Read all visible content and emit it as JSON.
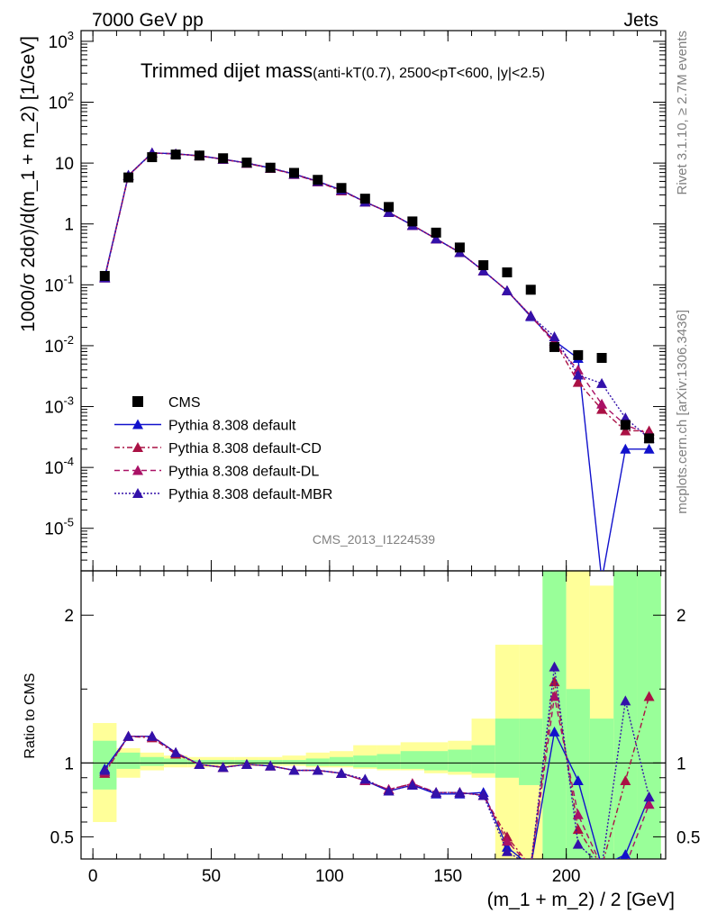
{
  "header": {
    "left": "7000 GeV pp",
    "right": "Jets"
  },
  "side_labels": {
    "top": "Rivet 3.1.10, ≥ 2.7M events",
    "bottom": "mcplots.cern.ch [arXiv:1306.3436]"
  },
  "watermark": "CMS_2013_I1224539",
  "chart_data": {
    "type": "line",
    "title": "Trimmed dijet mass",
    "subtitle": "(anti-kT(0.7), 2500<pT<600, |y|<2.5)",
    "xlabel": "(m_1 + m_2) / 2 [GeV]",
    "ylabel": "1000/σ 2dσ)/d(m_1 + m_2) [1/GeV]",
    "ratio_ylabel": "Ratio to CMS",
    "xlim": [
      -5,
      242
    ],
    "ylim": [
      2e-06,
      1500
    ],
    "yscale": "log",
    "ratio_ylim": [
      0.35,
      2.3
    ],
    "x_ticks": [
      "0",
      "50",
      "100",
      "150",
      "200"
    ],
    "y_ticks": [
      "10^3",
      "10^2",
      "10",
      "1",
      "10^-1",
      "10^-2",
      "10^-3",
      "10^-4",
      "10^-5"
    ],
    "ratio_ticks": [
      "0.5",
      "1",
      "2"
    ],
    "legend_placement": "bottom-left",
    "x": [
      5,
      15,
      25,
      35,
      45,
      55,
      65,
      75,
      85,
      95,
      105,
      115,
      125,
      135,
      145,
      155,
      165,
      175,
      185,
      195,
      205,
      215,
      225,
      235
    ],
    "data": {
      "name": "CMS",
      "values": [
        0.14,
        5.8,
        12.5,
        13.8,
        13.3,
        12.0,
        10.2,
        8.4,
        6.9,
        5.3,
        3.9,
        2.6,
        1.9,
        1.1,
        0.72,
        0.41,
        0.21,
        0.16,
        0.083,
        0.0095,
        0.007,
        0.0063,
        0.0005,
        0.0003
      ]
    },
    "bands": {
      "inner_edges": [
        0,
        10,
        20,
        30,
        40,
        50,
        60,
        70,
        80,
        90,
        100,
        110,
        120,
        130,
        140,
        150,
        160,
        170,
        180,
        190,
        200,
        210,
        220,
        230,
        240
      ],
      "inner_lo": [
        0.82,
        0.96,
        0.98,
        0.99,
        0.99,
        0.99,
        0.99,
        0.99,
        0.99,
        0.98,
        0.98,
        0.97,
        0.96,
        0.96,
        0.95,
        0.94,
        0.93,
        0.9,
        0.85,
        0.3,
        0.3,
        0.3,
        0.3,
        0.3
      ],
      "inner_hi": [
        1.15,
        1.07,
        1.04,
        1.03,
        1.02,
        1.02,
        1.02,
        1.02,
        1.02,
        1.03,
        1.04,
        1.05,
        1.06,
        1.08,
        1.08,
        1.09,
        1.12,
        1.3,
        1.3,
        2.3,
        1.5,
        1.3,
        2.3,
        2.3
      ],
      "outer_lo": [
        0.6,
        0.9,
        0.95,
        0.97,
        0.97,
        0.98,
        0.98,
        0.98,
        0.98,
        0.97,
        0.97,
        0.96,
        0.95,
        0.95,
        0.93,
        0.92,
        0.9,
        0.3,
        0.3,
        0.3,
        0.3,
        0.3,
        0.3,
        0.3
      ],
      "outer_hi": [
        1.27,
        1.1,
        1.07,
        1.05,
        1.04,
        1.04,
        1.04,
        1.04,
        1.05,
        1.07,
        1.08,
        1.12,
        1.12,
        1.14,
        1.14,
        1.15,
        1.3,
        1.8,
        1.8,
        2.3,
        2.3,
        2.2,
        2.3,
        2.3
      ]
    },
    "series": [
      {
        "name": "Pythia 8.308 default",
        "color": "#1111cc",
        "dash": "",
        "main": [
          0.135,
          6.3,
          14.7,
          14.2,
          13.2,
          11.6,
          10.0,
          8.3,
          6.6,
          5.0,
          3.6,
          2.3,
          1.55,
          0.95,
          0.57,
          0.34,
          0.17,
          0.08,
          0.03,
          0.012,
          0.0062,
          0.0,
          0.0002,
          0.0002
        ],
        "ratio": [
          0.96,
          1.18,
          1.18,
          1.07,
          0.99,
          0.97,
          0.99,
          0.98,
          0.95,
          0.95,
          0.93,
          0.88,
          0.81,
          0.85,
          0.79,
          0.79,
          0.8,
          0.43,
          0.3,
          1.21,
          0.88,
          0.3,
          0.38,
          0.77
        ]
      },
      {
        "name": "Pythia 8.308 default-CD",
        "color": "#aa1144",
        "dash": "6,3,2,3",
        "main": [
          0.13,
          6.2,
          14.6,
          14.1,
          13.1,
          11.5,
          9.9,
          8.2,
          6.5,
          4.9,
          3.5,
          2.3,
          1.55,
          0.95,
          0.57,
          0.34,
          0.17,
          0.08,
          0.031,
          0.012,
          0.0025,
          0.0009,
          0.0004,
          0.0004
        ],
        "ratio": [
          0.93,
          1.18,
          1.17,
          1.06,
          0.99,
          0.97,
          0.99,
          0.98,
          0.95,
          0.95,
          0.93,
          0.88,
          0.82,
          0.86,
          0.8,
          0.8,
          0.78,
          0.5,
          0.3,
          1.55,
          0.55,
          0.3,
          0.88,
          1.45
        ]
      },
      {
        "name": "Pythia 8.308 default-DL",
        "color": "#aa1166",
        "dash": "6,4",
        "main": [
          0.13,
          6.2,
          14.7,
          14.2,
          13.2,
          11.6,
          10.0,
          8.3,
          6.6,
          5.0,
          3.6,
          2.3,
          1.55,
          0.95,
          0.57,
          0.34,
          0.17,
          0.08,
          0.031,
          0.011,
          0.004,
          0.0011,
          0.0005,
          0.00035
        ],
        "ratio": [
          0.94,
          1.18,
          1.18,
          1.07,
          0.99,
          0.97,
          0.99,
          0.98,
          0.95,
          0.95,
          0.93,
          0.88,
          0.82,
          0.86,
          0.8,
          0.8,
          0.78,
          0.47,
          0.3,
          1.45,
          0.65,
          0.3,
          0.3,
          0.72
        ]
      },
      {
        "name": "Pythia 8.308 default-MBR",
        "color": "#3311aa",
        "dash": "2,2",
        "main": [
          0.13,
          6.3,
          14.7,
          14.2,
          13.2,
          11.6,
          10.0,
          8.3,
          6.6,
          5.0,
          3.6,
          2.3,
          1.55,
          0.95,
          0.57,
          0.34,
          0.17,
          0.08,
          0.031,
          0.014,
          0.0033,
          0.0024,
          0.00065,
          0.0003
        ],
        "ratio": [
          0.95,
          1.18,
          1.18,
          1.07,
          0.99,
          0.97,
          0.99,
          0.98,
          0.95,
          0.95,
          0.93,
          0.89,
          0.81,
          0.85,
          0.8,
          0.8,
          0.78,
          0.4,
          0.3,
          1.65,
          0.45,
          0.3,
          1.42,
          0.77
        ]
      }
    ]
  }
}
